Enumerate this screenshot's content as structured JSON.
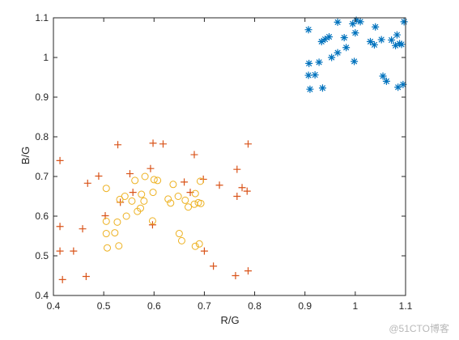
{
  "chart_data": {
    "type": "scatter",
    "xlabel": "R/G",
    "ylabel": "B/G",
    "xlim": [
      0.4,
      1.1
    ],
    "ylim": [
      0.4,
      1.1
    ],
    "xticks": [
      "0.4",
      "0.5",
      "0.6",
      "0.7",
      "0.8",
      "0.9",
      "1",
      "1.1"
    ],
    "yticks": [
      "0.4",
      "0.5",
      "0.6",
      "0.7",
      "0.8",
      "0.9",
      "1",
      "1.1"
    ],
    "grid": false,
    "series": [
      {
        "marker": "asterisk",
        "color": "#0072bd",
        "points": [
          [
            0.907,
            1.07
          ],
          [
            0.908,
            0.985
          ],
          [
            0.907,
            0.955
          ],
          [
            0.91,
            0.92
          ],
          [
            0.92,
            0.956
          ],
          [
            0.928,
            0.988
          ],
          [
            0.933,
            1.04
          ],
          [
            0.935,
            0.923
          ],
          [
            0.94,
            1.046
          ],
          [
            0.948,
            1.052
          ],
          [
            0.953,
            1.0
          ],
          [
            0.965,
            1.089
          ],
          [
            0.965,
            1.012
          ],
          [
            0.978,
            1.05
          ],
          [
            0.982,
            1.025
          ],
          [
            0.995,
            1.085
          ],
          [
            0.998,
            0.99
          ],
          [
            1.0,
            1.062
          ],
          [
            1.002,
            1.094
          ],
          [
            1.01,
            1.09
          ],
          [
            1.03,
            1.04
          ],
          [
            1.038,
            1.032
          ],
          [
            1.04,
            1.077
          ],
          [
            1.052,
            1.045
          ],
          [
            1.055,
            0.953
          ],
          [
            1.062,
            0.94
          ],
          [
            1.072,
            1.044
          ],
          [
            1.08,
            1.03
          ],
          [
            1.083,
            1.057
          ],
          [
            1.085,
            0.925
          ],
          [
            1.088,
            1.035
          ],
          [
            1.092,
            1.033
          ],
          [
            1.095,
            0.932
          ],
          [
            1.097,
            1.09
          ]
        ]
      },
      {
        "marker": "plus",
        "color": "#d95319",
        "points": [
          [
            0.413,
            0.74
          ],
          [
            0.413,
            0.574
          ],
          [
            0.413,
            0.512
          ],
          [
            0.418,
            0.44
          ],
          [
            0.44,
            0.512
          ],
          [
            0.458,
            0.568
          ],
          [
            0.465,
            0.448
          ],
          [
            0.468,
            0.683
          ],
          [
            0.49,
            0.701
          ],
          [
            0.503,
            0.601
          ],
          [
            0.528,
            0.78
          ],
          [
            0.533,
            0.635
          ],
          [
            0.552,
            0.707
          ],
          [
            0.558,
            0.66
          ],
          [
            0.593,
            0.72
          ],
          [
            0.597,
            0.578
          ],
          [
            0.598,
            0.784
          ],
          [
            0.618,
            0.782
          ],
          [
            0.66,
            0.686
          ],
          [
            0.672,
            0.66
          ],
          [
            0.68,
            0.755
          ],
          [
            0.698,
            0.693
          ],
          [
            0.7,
            0.512
          ],
          [
            0.718,
            0.474
          ],
          [
            0.73,
            0.678
          ],
          [
            0.762,
            0.45
          ],
          [
            0.765,
            0.718
          ],
          [
            0.765,
            0.65
          ],
          [
            0.775,
            0.672
          ],
          [
            0.785,
            0.663
          ],
          [
            0.787,
            0.462
          ],
          [
            0.787,
            0.782
          ]
        ]
      },
      {
        "marker": "circle",
        "color": "#edb120",
        "points": [
          [
            0.505,
            0.67
          ],
          [
            0.505,
            0.587
          ],
          [
            0.505,
            0.556
          ],
          [
            0.507,
            0.52
          ],
          [
            0.522,
            0.558
          ],
          [
            0.527,
            0.585
          ],
          [
            0.53,
            0.525
          ],
          [
            0.532,
            0.642
          ],
          [
            0.542,
            0.65
          ],
          [
            0.545,
            0.6
          ],
          [
            0.556,
            0.638
          ],
          [
            0.562,
            0.69
          ],
          [
            0.567,
            0.612
          ],
          [
            0.573,
            0.62
          ],
          [
            0.575,
            0.655
          ],
          [
            0.58,
            0.638
          ],
          [
            0.582,
            0.7
          ],
          [
            0.597,
            0.588
          ],
          [
            0.598,
            0.66
          ],
          [
            0.6,
            0.692
          ],
          [
            0.607,
            0.69
          ],
          [
            0.628,
            0.643
          ],
          [
            0.633,
            0.633
          ],
          [
            0.638,
            0.68
          ],
          [
            0.648,
            0.65
          ],
          [
            0.65,
            0.556
          ],
          [
            0.655,
            0.538
          ],
          [
            0.662,
            0.64
          ],
          [
            0.668,
            0.623
          ],
          [
            0.68,
            0.63
          ],
          [
            0.682,
            0.657
          ],
          [
            0.682,
            0.524
          ],
          [
            0.688,
            0.634
          ],
          [
            0.69,
            0.53
          ],
          [
            0.692,
            0.688
          ],
          [
            0.693,
            0.632
          ]
        ]
      }
    ]
  },
  "watermark": "@51CTO博客"
}
